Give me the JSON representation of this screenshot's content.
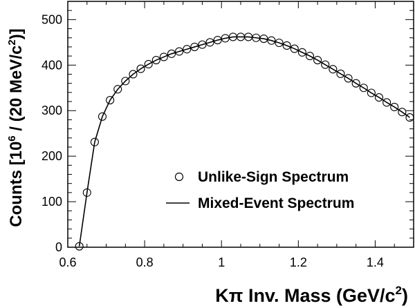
{
  "chart_data": {
    "type": "scatter",
    "xlim": [
      0.6,
      1.5
    ],
    "ylim": [
      0,
      540
    ],
    "x_ticks": [
      "0.6",
      "0.8",
      "1",
      "1.2",
      "1.4"
    ],
    "y_ticks": [
      "0",
      "100",
      "200",
      "300",
      "400",
      "500"
    ],
    "xlabel_main": "Kπ Inv. Mass (GeV/c",
    "xlabel_sup": "2",
    "xlabel_close": ")",
    "ylabel_pre": "Counts [10",
    "ylabel_sup1": "6",
    "ylabel_mid": " / (20 MeV/c",
    "ylabel_sup2": "2",
    "ylabel_post": ")]",
    "grid": false,
    "legend_position": "center-right",
    "series": [
      {
        "name": "Unlike-Sign Spectrum",
        "style": "open-circle",
        "x": [
          0.63,
          0.65,
          0.67,
          0.69,
          0.71,
          0.73,
          0.75,
          0.77,
          0.79,
          0.81,
          0.83,
          0.85,
          0.87,
          0.89,
          0.91,
          0.93,
          0.95,
          0.97,
          0.99,
          1.01,
          1.03,
          1.05,
          1.07,
          1.09,
          1.11,
          1.13,
          1.15,
          1.17,
          1.19,
          1.21,
          1.23,
          1.25,
          1.27,
          1.29,
          1.31,
          1.33,
          1.35,
          1.37,
          1.39,
          1.41,
          1.43,
          1.45,
          1.47,
          1.49
        ],
        "y": [
          2,
          120,
          231,
          287,
          323,
          347,
          365,
          380,
          392,
          402,
          411,
          418,
          425,
          430,
          435,
          440,
          445,
          450,
          455,
          459,
          462,
          462,
          462,
          460,
          458,
          454,
          449,
          443,
          436,
          428,
          420,
          411,
          401,
          391,
          381,
          371,
          360,
          350,
          339,
          329,
          318,
          308,
          297,
          285
        ]
      },
      {
        "name": "Mixed-Event Spectrum",
        "style": "solid-line",
        "x": [
          0.63,
          0.65,
          0.67,
          0.69,
          0.71,
          0.73,
          0.75,
          0.77,
          0.79,
          0.81,
          0.83,
          0.85,
          0.87,
          0.89,
          0.91,
          0.93,
          0.95,
          0.97,
          0.99,
          1.01,
          1.03,
          1.05,
          1.07,
          1.09,
          1.11,
          1.13,
          1.15,
          1.17,
          1.19,
          1.21,
          1.23,
          1.25,
          1.27,
          1.29,
          1.31,
          1.33,
          1.35,
          1.37,
          1.39,
          1.41,
          1.43,
          1.45,
          1.47,
          1.49
        ],
        "y": [
          2,
          120,
          231,
          287,
          323,
          347,
          365,
          380,
          392,
          402,
          411,
          418,
          425,
          430,
          435,
          440,
          445,
          450,
          455,
          459,
          462,
          462,
          462,
          460,
          458,
          454,
          449,
          443,
          436,
          428,
          420,
          411,
          401,
          391,
          381,
          371,
          360,
          350,
          339,
          329,
          318,
          308,
          297,
          285
        ]
      }
    ]
  }
}
